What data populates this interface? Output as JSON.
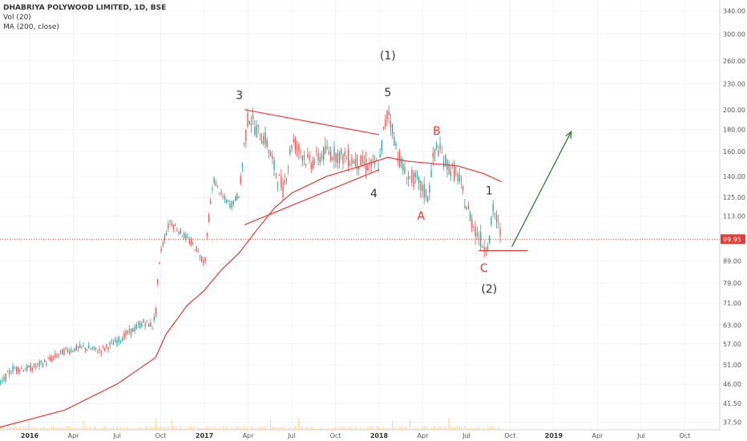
{
  "legend": {
    "title": "DHABRIYA POLYWOOD LIMITED, 1D, BSE",
    "vol": "Vol (20)",
    "ma": "MA (200, close)"
  },
  "price_badge": "99.95",
  "colors": {
    "up": "#26a69a",
    "down": "#ef5350",
    "ma": "#e53935",
    "trend": "#e53935",
    "arrow": "#2e7d32",
    "badge": "#e53935",
    "volume": "#ffcc80"
  },
  "chart_data": {
    "type": "line",
    "title": "DHABRIYA POLYWOOD LIMITED, 1D, BSE",
    "y_scale": "log",
    "ylim": [
      36,
      360
    ],
    "x_ticks": [
      {
        "label": "2016",
        "date": 2016.0,
        "year": true
      },
      {
        "label": "Apr",
        "date": 2016.25
      },
      {
        "label": "Jul",
        "date": 2016.5
      },
      {
        "label": "Oct",
        "date": 2016.75
      },
      {
        "label": "2017",
        "date": 2017.0,
        "year": true
      },
      {
        "label": "Apr",
        "date": 2017.25
      },
      {
        "label": "Jul",
        "date": 2017.5
      },
      {
        "label": "Oct",
        "date": 2017.75
      },
      {
        "label": "2018",
        "date": 2018.0,
        "year": true
      },
      {
        "label": "Apr",
        "date": 2018.25
      },
      {
        "label": "Jul",
        "date": 2018.5
      },
      {
        "label": "Oct",
        "date": 2018.75
      },
      {
        "label": "2019",
        "date": 2019.0,
        "year": true
      },
      {
        "label": "Apr",
        "date": 2019.25
      },
      {
        "label": "Jul",
        "date": 2019.5
      },
      {
        "label": "Oct",
        "date": 2019.75
      }
    ],
    "y_ticks": [
      "340.00",
      "300.00",
      "260.00",
      "230.00",
      "200.00",
      "180.00",
      "160.00",
      "140.00",
      "125.00",
      "113.00",
      "89.00",
      "79.00",
      "71.00",
      "63.00",
      "57.00",
      "51.00",
      "46.00",
      "41.50",
      "37.50"
    ],
    "price_path": [
      [
        2015.83,
        46
      ],
      [
        2015.9,
        50
      ],
      [
        2016.0,
        50
      ],
      [
        2016.1,
        52
      ],
      [
        2016.2,
        55
      ],
      [
        2016.3,
        56
      ],
      [
        2016.4,
        55
      ],
      [
        2016.5,
        58
      ],
      [
        2016.55,
        60
      ],
      [
        2016.65,
        64
      ],
      [
        2016.7,
        63
      ],
      [
        2016.72,
        68
      ],
      [
        2016.73,
        80
      ],
      [
        2016.75,
        95
      ],
      [
        2016.8,
        110
      ],
      [
        2016.9,
        100
      ],
      [
        2016.95,
        95
      ],
      [
        2017.0,
        88
      ],
      [
        2017.02,
        110
      ],
      [
        2017.05,
        138
      ],
      [
        2017.1,
        125
      ],
      [
        2017.15,
        120
      ],
      [
        2017.2,
        128
      ],
      [
        2017.22,
        160
      ],
      [
        2017.25,
        195
      ],
      [
        2017.3,
        178
      ],
      [
        2017.35,
        170
      ],
      [
        2017.4,
        145
      ],
      [
        2017.45,
        130
      ],
      [
        2017.5,
        170
      ],
      [
        2017.6,
        150
      ],
      [
        2017.7,
        160
      ],
      [
        2017.8,
        155
      ],
      [
        2017.9,
        150
      ],
      [
        2017.95,
        148
      ],
      [
        2018.0,
        150
      ],
      [
        2018.02,
        175
      ],
      [
        2018.05,
        200
      ],
      [
        2018.1,
        160
      ],
      [
        2018.15,
        140
      ],
      [
        2018.2,
        138
      ],
      [
        2018.25,
        130
      ],
      [
        2018.28,
        125
      ],
      [
        2018.3,
        150
      ],
      [
        2018.33,
        165
      ],
      [
        2018.38,
        150
      ],
      [
        2018.45,
        140
      ],
      [
        2018.5,
        118
      ],
      [
        2018.55,
        105
      ],
      [
        2018.6,
        96
      ],
      [
        2018.63,
        100
      ],
      [
        2018.65,
        118
      ],
      [
        2018.7,
        100
      ]
    ],
    "ma_path": [
      [
        2015.83,
        36.5
      ],
      [
        2016.2,
        40
      ],
      [
        2016.5,
        46
      ],
      [
        2016.72,
        53
      ],
      [
        2016.78,
        60
      ],
      [
        2016.9,
        70
      ],
      [
        2017.0,
        76
      ],
      [
        2017.1,
        85
      ],
      [
        2017.2,
        93
      ],
      [
        2017.3,
        105
      ],
      [
        2017.4,
        118
      ],
      [
        2017.5,
        128
      ],
      [
        2017.7,
        140
      ],
      [
        2017.9,
        148
      ],
      [
        2018.05,
        155
      ],
      [
        2018.15,
        152
      ],
      [
        2018.3,
        150
      ],
      [
        2018.45,
        148
      ],
      [
        2018.6,
        142
      ],
      [
        2018.7,
        136
      ]
    ],
    "trendlines": [
      {
        "points": [
          [
            2017.23,
            200
          ],
          [
            2018.0,
            175
          ]
        ]
      },
      {
        "points": [
          [
            2017.23,
            108
          ],
          [
            2018.0,
            145
          ]
        ]
      },
      {
        "points": [
          [
            2018.57,
            94
          ],
          [
            2018.85,
            94
          ]
        ]
      }
    ],
    "arrow": {
      "from": [
        2018.76,
        96
      ],
      "to": [
        2019.1,
        178
      ]
    },
    "price_line": 99.95,
    "annotations": [
      {
        "text": "3",
        "date": 2017.2,
        "price": 212,
        "color": "#333333"
      },
      {
        "text": "(1)",
        "date": 2018.05,
        "price": 262,
        "color": "#333333"
      },
      {
        "text": "5",
        "date": 2018.05,
        "price": 215,
        "color": "#333333"
      },
      {
        "text": "B",
        "date": 2018.33,
        "price": 175,
        "color": "#e53935"
      },
      {
        "text": "4",
        "date": 2017.97,
        "price": 125,
        "color": "#333333"
      },
      {
        "text": "A",
        "date": 2018.24,
        "price": 111,
        "color": "#e53935"
      },
      {
        "text": "1",
        "date": 2018.63,
        "price": 127,
        "color": "#333333"
      },
      {
        "text": "C",
        "date": 2018.6,
        "price": 84,
        "color": "#e53935"
      },
      {
        "text": "(2)",
        "date": 2018.63,
        "price": 75,
        "color": "#333333"
      }
    ]
  }
}
